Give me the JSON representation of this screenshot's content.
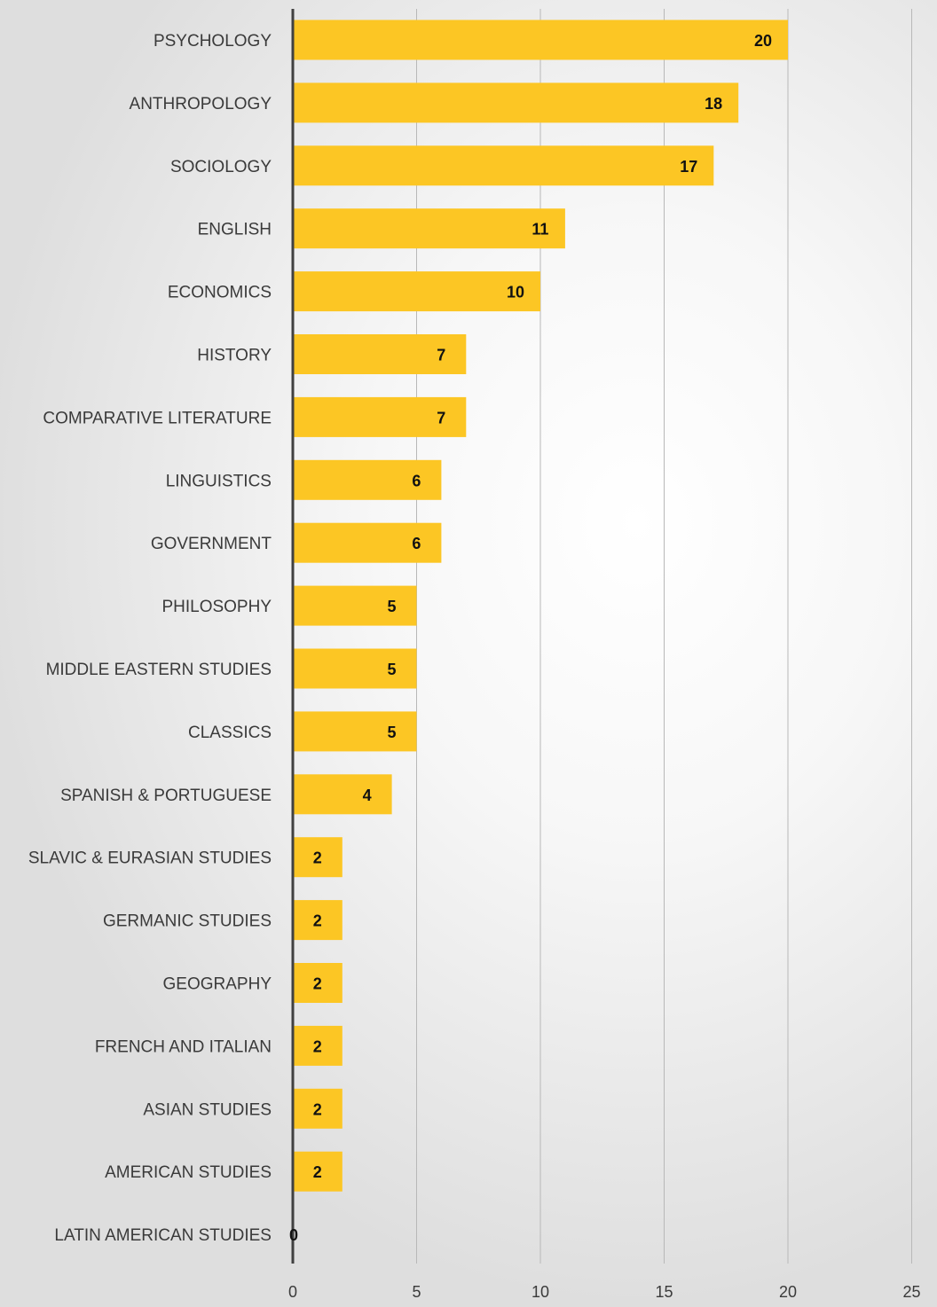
{
  "chart_data": {
    "type": "bar",
    "orientation": "horizontal",
    "title": "",
    "xlabel": "",
    "ylabel": "",
    "categories": [
      "PSYCHOLOGY",
      "ANTHROPOLOGY",
      "SOCIOLOGY",
      "ENGLISH",
      "ECONOMICS",
      "HISTORY",
      "COMPARATIVE LITERATURE",
      "LINGUISTICS",
      "GOVERNMENT",
      "PHILOSOPHY",
      "MIDDLE EASTERN STUDIES",
      "CLASSICS",
      "SPANISH & PORTUGUESE",
      "SLAVIC & EURASIAN STUDIES",
      "GERMANIC STUDIES",
      "GEOGRAPHY",
      "FRENCH AND ITALIAN",
      "ASIAN STUDIES",
      "AMERICAN STUDIES",
      "LATIN AMERICAN STUDIES"
    ],
    "values": [
      20,
      18,
      17,
      11,
      10,
      7,
      7,
      6,
      6,
      5,
      5,
      5,
      4,
      2,
      2,
      2,
      2,
      2,
      2,
      0
    ],
    "xlim": [
      0,
      25
    ],
    "xticks": [
      0,
      5,
      10,
      15,
      20,
      25
    ],
    "grid": true,
    "data_labels": true,
    "bar_color": "#FCC624",
    "axis_color": "#404040",
    "grid_color": "#b8b8b8"
  }
}
